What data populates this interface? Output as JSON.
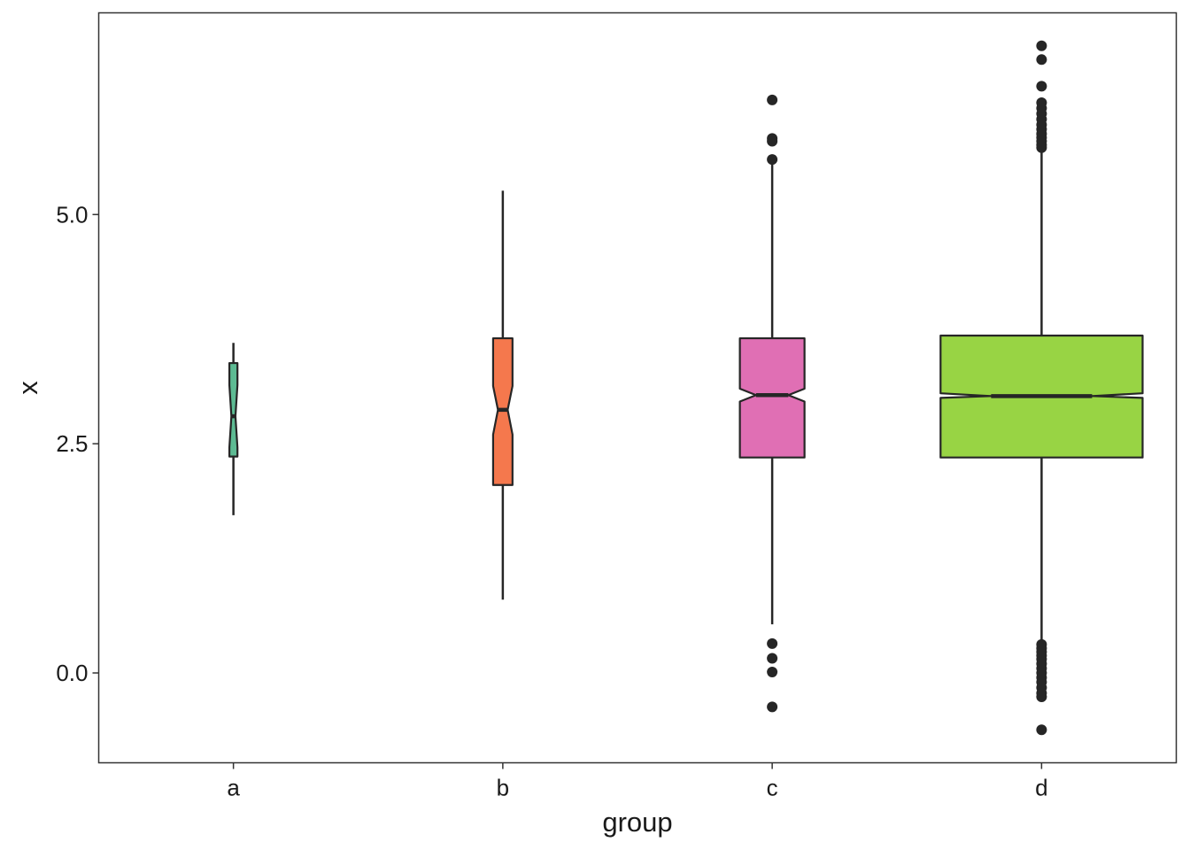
{
  "chart_data": {
    "type": "boxplot",
    "notched": true,
    "variable_width": true,
    "xlabel": "group",
    "ylabel": "x",
    "categories": [
      "a",
      "b",
      "c",
      "d"
    ],
    "ylim": [
      -0.98,
      7.2
    ],
    "yticks": [
      {
        "value": 0,
        "label": "0.0"
      },
      {
        "value": 2.5,
        "label": "2.5"
      },
      {
        "value": 5,
        "label": "5.0"
      }
    ],
    "grid": false,
    "legend": "none",
    "box_stroke": "#262626",
    "outlier_color": "#262626",
    "groups": [
      {
        "name": "a",
        "color": "#5dbb93",
        "relative_width": 0.05,
        "lower_whisker": 1.72,
        "q1": 2.36,
        "median": 2.8,
        "q3": 3.38,
        "upper_whisker": 3.6,
        "notch_low": 2.46,
        "notch_high": 3.14,
        "outliers": []
      },
      {
        "name": "b",
        "color": "#f5784d",
        "relative_width": 0.12,
        "lower_whisker": 0.8,
        "q1": 2.05,
        "median": 2.87,
        "q3": 3.65,
        "upper_whisker": 5.26,
        "notch_low": 2.6,
        "notch_high": 3.13,
        "outliers": []
      },
      {
        "name": "c",
        "color": "#e06fb4",
        "relative_width": 0.4,
        "lower_whisker": 0.53,
        "q1": 2.35,
        "median": 3.03,
        "q3": 3.65,
        "upper_whisker": 5.55,
        "notch_low": 2.96,
        "notch_high": 3.1,
        "outliers": [
          6.25,
          5.83,
          5.8,
          5.6,
          0.32,
          0.16,
          0.01,
          -0.37
        ]
      },
      {
        "name": "d",
        "color": "#98d444",
        "relative_width": 1.25,
        "lower_whisker": 0.36,
        "q1": 2.35,
        "median": 3.02,
        "q3": 3.68,
        "upper_whisker": 5.7,
        "notch_low": 3.0,
        "notch_high": 3.05,
        "outliers": [
          6.84,
          6.69,
          6.4,
          6.22,
          6.16,
          6.1,
          6.04,
          5.98,
          5.93,
          5.88,
          5.84,
          5.8,
          5.76,
          5.73,
          0.31,
          0.27,
          0.23,
          0.19,
          0.15,
          0.1,
          0.05,
          0.0,
          -0.05,
          -0.1,
          -0.16,
          -0.22,
          -0.26,
          -0.62
        ]
      }
    ]
  }
}
